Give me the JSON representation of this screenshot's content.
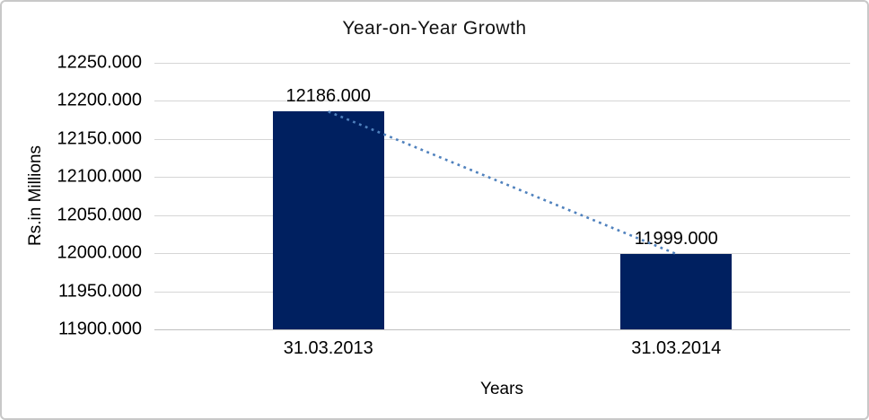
{
  "chart_data": {
    "type": "bar",
    "title": "Year-on-Year Growth",
    "xlabel": "Years",
    "ylabel": "Rs.in Millions",
    "categories": [
      "31.03.2013",
      "31.03.2014"
    ],
    "series": [
      {
        "name": "Rs.in Millions",
        "values": [
          12186,
          11999
        ]
      }
    ],
    "data_labels": [
      "12186.000",
      "11999.000"
    ],
    "y_ticks": [
      "12250.000",
      "12200.000",
      "12150.000",
      "12100.000",
      "12050.000",
      "12000.000",
      "11950.000",
      "11900.000"
    ],
    "ylim": [
      11900,
      12250
    ],
    "y_tick_step": 50,
    "grid": "horizontal",
    "legend": "none",
    "trendline": {
      "type": "linear",
      "style": "dotted",
      "color": "#4f81bd"
    },
    "colors": {
      "bar": "#002060",
      "gridline": "#d6d6d6",
      "axis_line": "#bfbfbf",
      "text": "#000000",
      "frame_border": "#c8c8c8"
    }
  }
}
